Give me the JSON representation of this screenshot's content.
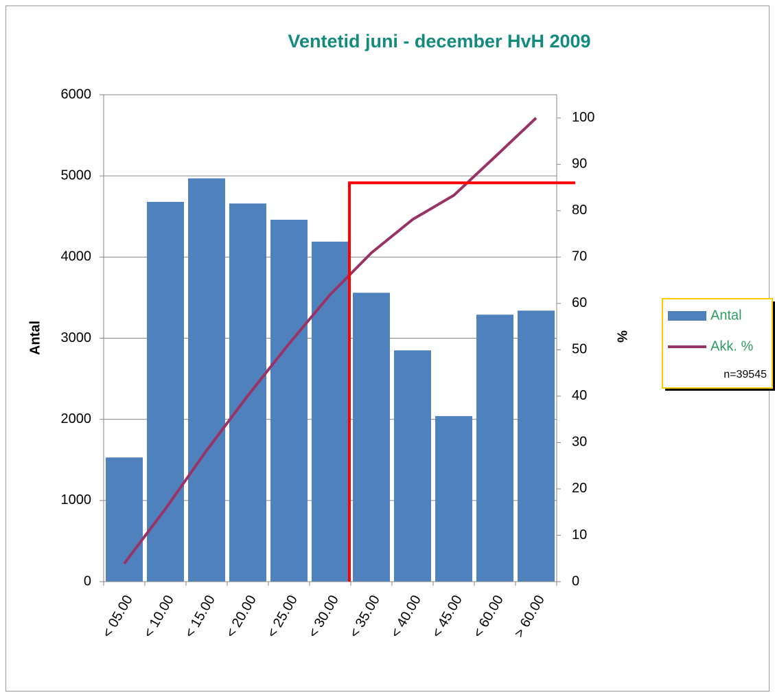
{
  "chart_data": {
    "type": "bar_line",
    "title": "Ventetid juni - december HvH 2009",
    "ylabel": "Antal",
    "y2label": "%",
    "categories": [
      "< 05.00",
      "< 10.00",
      "< 15.00",
      "< 20.00",
      "< 25.00",
      "< 30.00",
      "< 35.00",
      "< 40.00",
      "< 45.00",
      "< 60.00",
      "> 60.00"
    ],
    "series": [
      {
        "name": "Antal",
        "type": "bar",
        "color": "#4f81bd",
        "values": [
          1530,
          4680,
          4970,
          4660,
          4460,
          4190,
          3560,
          2850,
          2040,
          3290,
          3340
        ]
      },
      {
        "name": "Akk. %",
        "type": "line",
        "axis": "y2",
        "color": "#993366",
        "values": [
          3.9,
          15.7,
          28.3,
          40.1,
          51.3,
          61.9,
          70.9,
          78.1,
          83.3,
          91.6,
          100
        ]
      }
    ],
    "ylim": [
      0,
      6000
    ],
    "yticks": [
      0,
      1000,
      2000,
      3000,
      4000,
      5000,
      6000
    ],
    "y2lim": [
      0,
      105
    ],
    "y2ticks": [
      0,
      10,
      20,
      30,
      40,
      50,
      60,
      70,
      80,
      90,
      100
    ],
    "grid": true,
    "legend": "right",
    "annotation": "n=39545",
    "reference_line": {
      "value": 86,
      "axis": "y2",
      "category": "< 35.00",
      "color": "#ff0000"
    }
  }
}
